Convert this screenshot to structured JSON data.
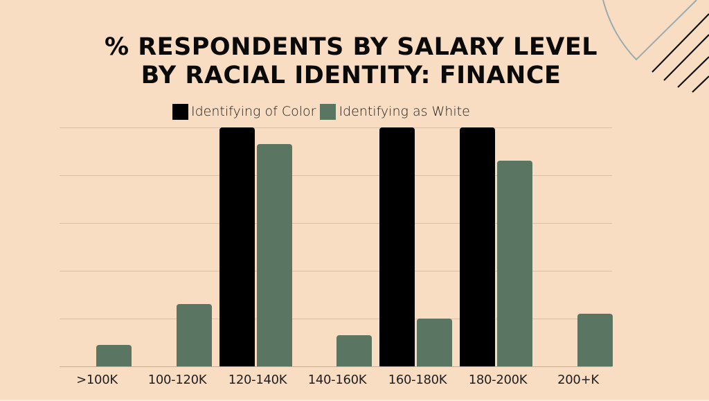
{
  "title": {
    "line1": "% RESPONDENTS BY SALARY LEVEL",
    "line2": "BY RACIAL IDENTITY: FINANCE"
  },
  "legend": [
    {
      "label": "Identifying of Color",
      "color": "#000000"
    },
    {
      "label": "Identifying as White",
      "color": "#5a7562"
    }
  ],
  "colors": {
    "background": "#f8ddc3",
    "series_color": "#000000",
    "series_white": "#5a7562",
    "gridline": "#d8bfa6",
    "decor_arc": "#9aabaf",
    "decor_lines": "#111111"
  },
  "chart_data": {
    "type": "bar",
    "title": "% RESPONDENTS BY SALARY LEVEL BY RACIAL IDENTITY: FINANCE",
    "xlabel": "",
    "ylabel": "",
    "categories": [
      ">100K",
      "100-120K",
      "120-140K",
      "140-160K",
      "160-180K",
      "180-200K",
      "200+K"
    ],
    "series": [
      {
        "name": "Identifying of Color",
        "color": "#000000",
        "values": [
          0,
          0,
          100,
          0,
          100,
          100,
          0
        ]
      },
      {
        "name": "Identifying as White",
        "color": "#5a7562",
        "values": [
          9,
          26,
          93,
          13,
          20,
          86,
          22
        ]
      }
    ],
    "ylim": [
      0,
      100
    ],
    "gridlines": [
      0,
      20,
      40,
      60,
      80,
      100
    ],
    "grid": true,
    "y_tick_labels_shown": false,
    "legend_position": "top"
  }
}
